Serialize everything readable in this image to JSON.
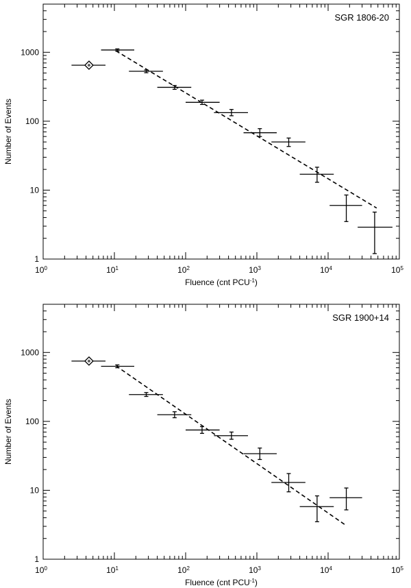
{
  "chart_data": [
    {
      "type": "scatter",
      "title": "SGR 1806-20",
      "xlabel": "Fluence (cnt PCU",
      "xlabel_sup": "-1",
      "xlabel_end": ")",
      "ylabel": "Number of Events",
      "xscale": "log",
      "yscale": "log",
      "xlim": [
        1,
        100000
      ],
      "ylim": [
        1,
        5000
      ],
      "x_ticks": [
        {
          "base": "10",
          "exp": "0"
        },
        {
          "base": "10",
          "exp": "1"
        },
        {
          "base": "10",
          "exp": "2"
        },
        {
          "base": "10",
          "exp": "3"
        },
        {
          "base": "10",
          "exp": "4"
        },
        {
          "base": "10",
          "exp": "5"
        }
      ],
      "y_ticks": [
        "1",
        "10",
        "100",
        "1000"
      ],
      "annotation": "SGR 1806-20",
      "diamond_point": {
        "x": 4.4,
        "y": 650
      },
      "diamond_xerr": [
        2.5,
        7.5
      ],
      "points": [
        {
          "x": 11,
          "y": 1080,
          "xlo": 6.5,
          "xhi": 19,
          "ylo": 1040,
          "yhi": 1120
        },
        {
          "x": 28,
          "y": 530,
          "xlo": 16,
          "xhi": 48,
          "ylo": 505,
          "yhi": 555
        },
        {
          "x": 70,
          "y": 310,
          "xlo": 40,
          "xhi": 120,
          "ylo": 290,
          "yhi": 330
        },
        {
          "x": 170,
          "y": 188,
          "xlo": 100,
          "xhi": 300,
          "ylo": 175,
          "yhi": 202
        },
        {
          "x": 440,
          "y": 133,
          "xlo": 250,
          "xhi": 750,
          "ylo": 120,
          "yhi": 148
        },
        {
          "x": 1100,
          "y": 68,
          "xlo": 650,
          "xhi": 1900,
          "ylo": 60,
          "yhi": 78
        },
        {
          "x": 2800,
          "y": 50,
          "xlo": 1600,
          "xhi": 4800,
          "ylo": 43,
          "yhi": 57
        },
        {
          "x": 7000,
          "y": 17,
          "xlo": 4000,
          "xhi": 12000,
          "ylo": 13,
          "yhi": 21.5
        },
        {
          "x": 18000,
          "y": 6,
          "xlo": 10500,
          "xhi": 30000,
          "ylo": 3.5,
          "yhi": 8.5
        },
        {
          "x": 45000,
          "y": 2.9,
          "xlo": 26000,
          "xhi": 80000,
          "ylo": 1.2,
          "yhi": 4.8
        }
      ],
      "fit_line": [
        {
          "x": 10.5,
          "y": 1050
        },
        {
          "x": 48000,
          "y": 5.5
        }
      ]
    },
    {
      "type": "scatter",
      "title": "SGR 1900+14",
      "xlabel": "Fluence (cnt PCU",
      "xlabel_sup": "-1",
      "xlabel_end": ")",
      "ylabel": "Number of Events",
      "xscale": "log",
      "yscale": "log",
      "xlim": [
        1,
        100000
      ],
      "ylim": [
        1,
        5000
      ],
      "x_ticks": [
        {
          "base": "10",
          "exp": "0"
        },
        {
          "base": "10",
          "exp": "1"
        },
        {
          "base": "10",
          "exp": "2"
        },
        {
          "base": "10",
          "exp": "3"
        },
        {
          "base": "10",
          "exp": "4"
        },
        {
          "base": "10",
          "exp": "5"
        }
      ],
      "y_ticks": [
        "1",
        "10",
        "100",
        "1000"
      ],
      "annotation": "SGR 1900+14",
      "diamond_point": {
        "x": 4.4,
        "y": 750
      },
      "diamond_xerr": [
        2.5,
        7.5
      ],
      "points": [
        {
          "x": 11,
          "y": 630,
          "xlo": 6.5,
          "xhi": 19,
          "ylo": 600,
          "yhi": 660
        },
        {
          "x": 28,
          "y": 245,
          "xlo": 16,
          "xhi": 48,
          "ylo": 230,
          "yhi": 262
        },
        {
          "x": 70,
          "y": 125,
          "xlo": 40,
          "xhi": 120,
          "ylo": 113,
          "yhi": 138
        },
        {
          "x": 170,
          "y": 75,
          "xlo": 100,
          "xhi": 300,
          "ylo": 67,
          "yhi": 84
        },
        {
          "x": 440,
          "y": 62,
          "xlo": 250,
          "xhi": 750,
          "ylo": 55,
          "yhi": 70
        },
        {
          "x": 1100,
          "y": 34,
          "xlo": 650,
          "xhi": 1900,
          "ylo": 28,
          "yhi": 41
        },
        {
          "x": 2800,
          "y": 13,
          "xlo": 1600,
          "xhi": 4800,
          "ylo": 9.5,
          "yhi": 17.5
        },
        {
          "x": 7000,
          "y": 5.8,
          "xlo": 4000,
          "xhi": 12000,
          "ylo": 3.5,
          "yhi": 8.3
        },
        {
          "x": 18000,
          "y": 7.8,
          "xlo": 10500,
          "xhi": 30000,
          "ylo": 5.2,
          "yhi": 10.8
        }
      ],
      "fit_line": [
        {
          "x": 10.5,
          "y": 640
        },
        {
          "x": 17000,
          "y": 3.2
        }
      ]
    }
  ]
}
